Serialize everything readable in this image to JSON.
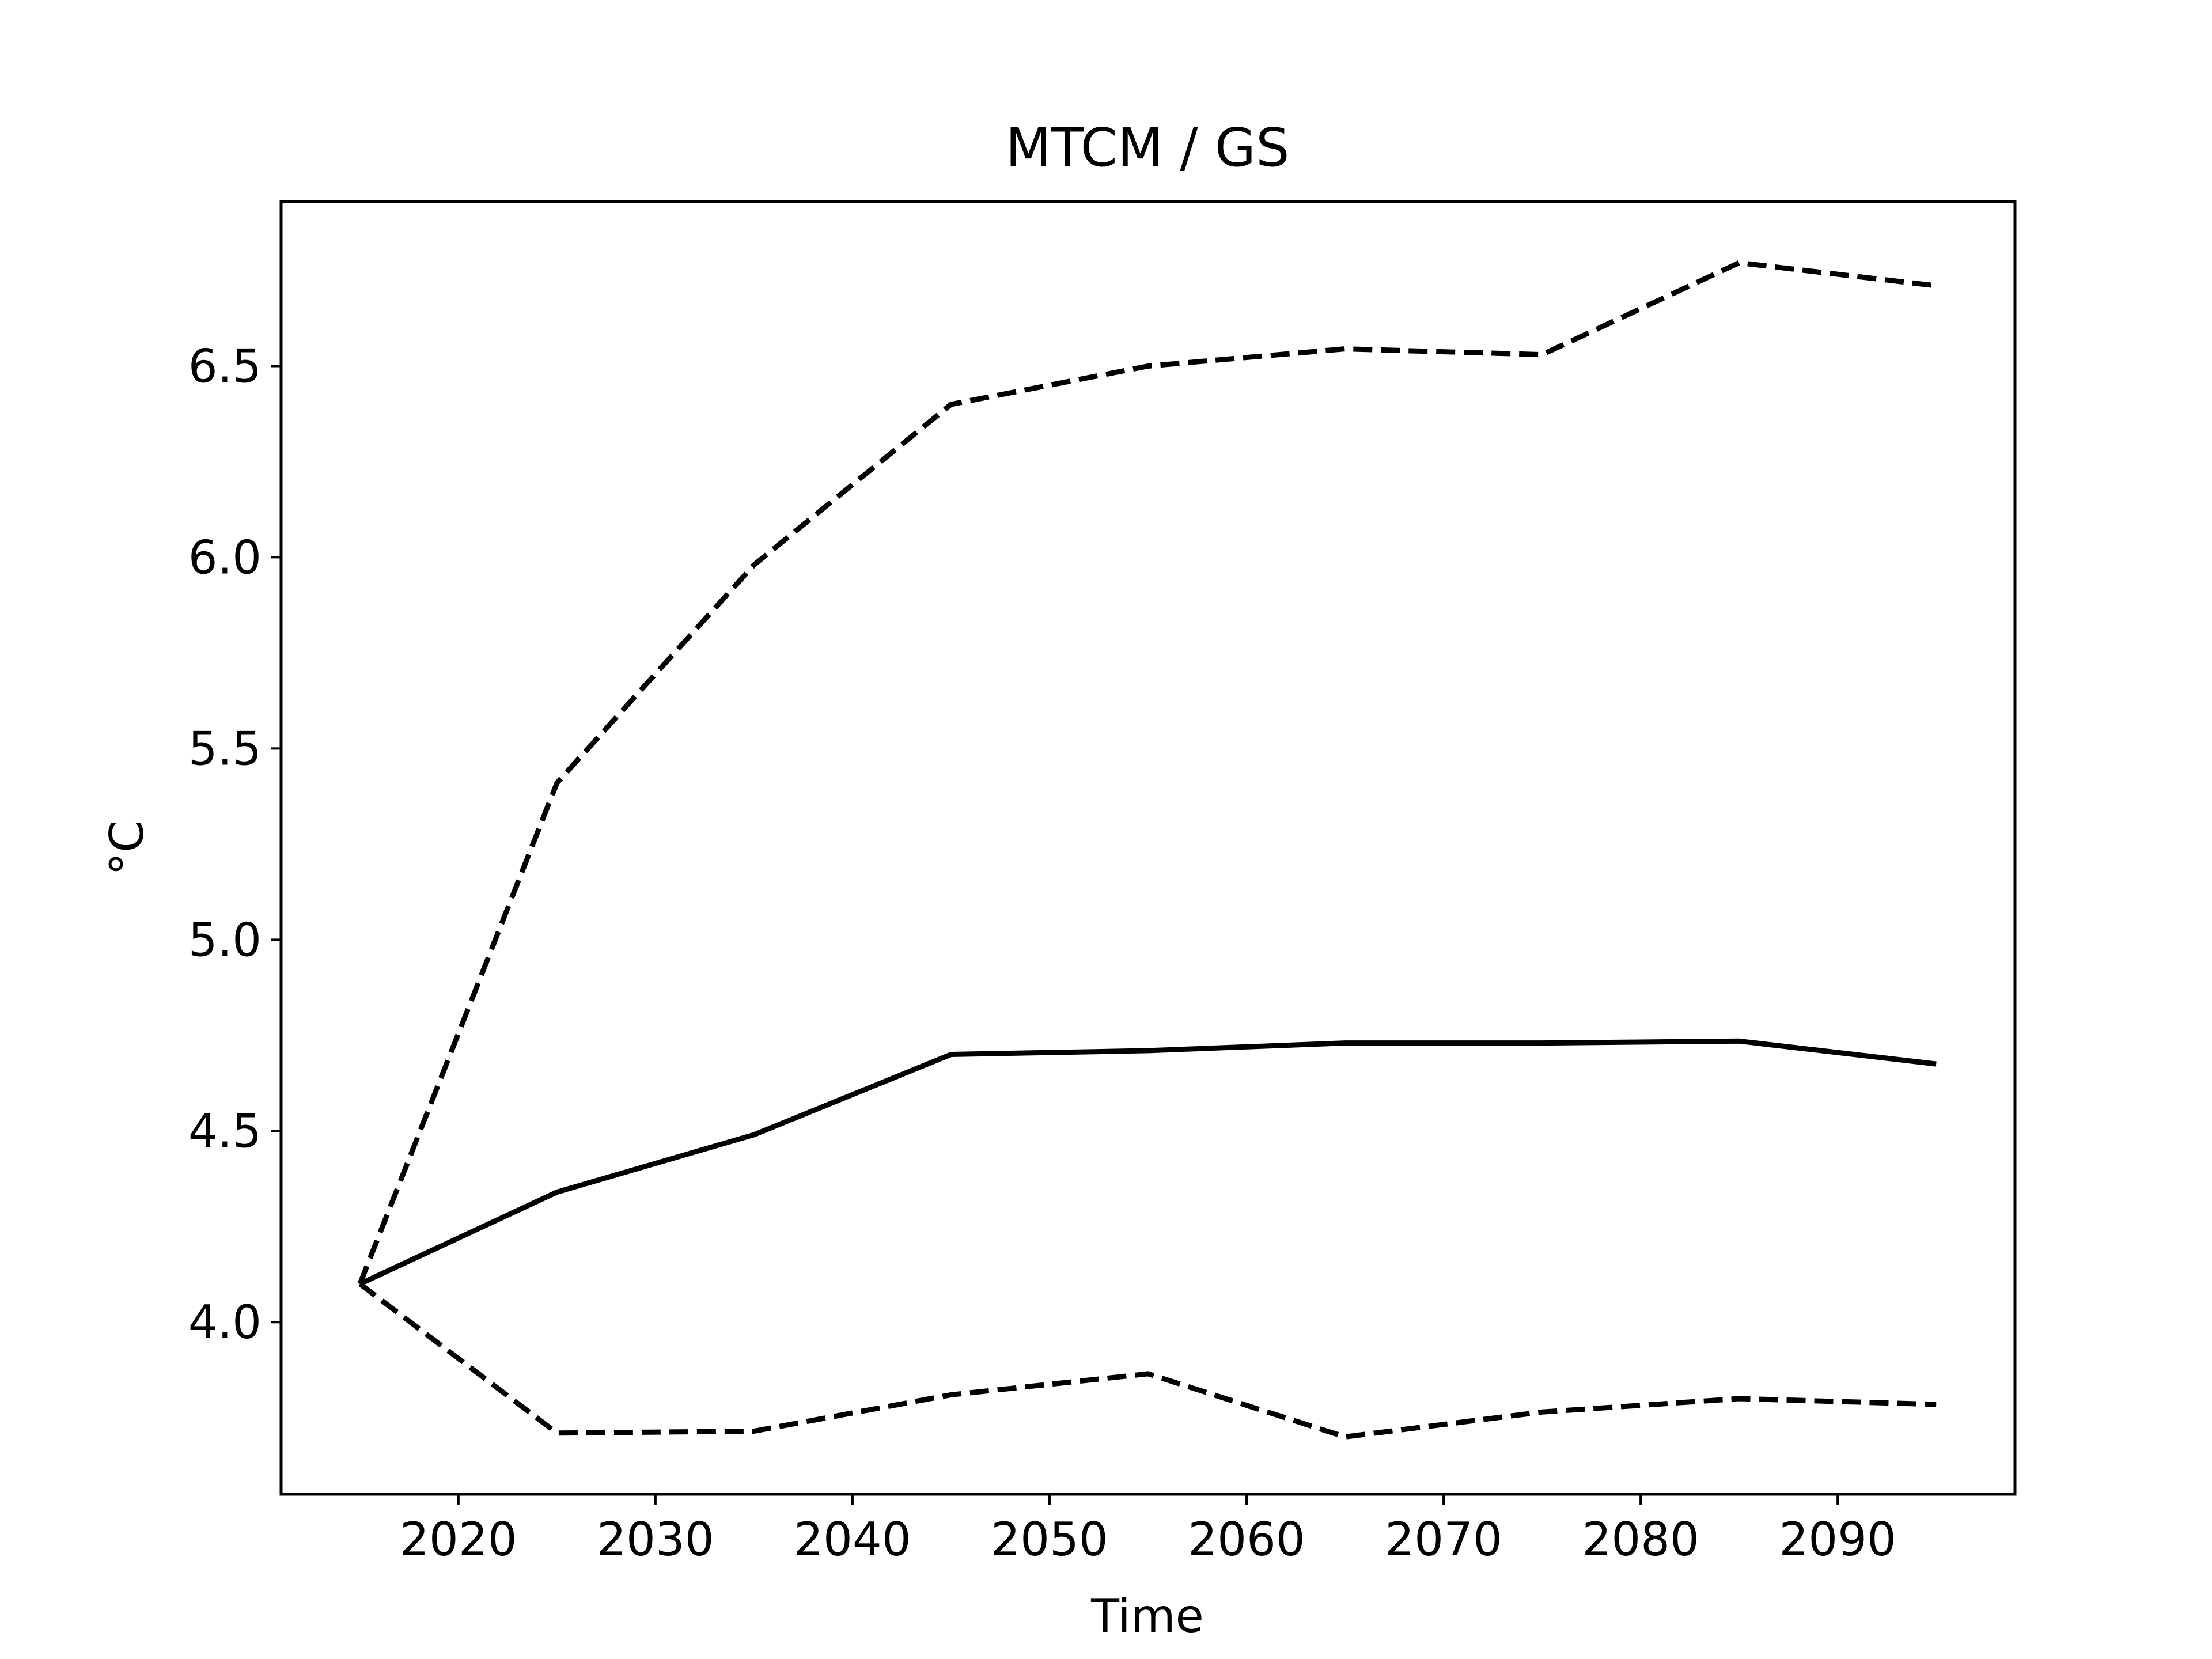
{
  "chart_data": {
    "type": "line",
    "title": "MTCM / GS",
    "xlabel": "Time",
    "ylabel": "°C",
    "xlim": [
      2011,
      2099
    ],
    "ylim": [
      3.55,
      6.93
    ],
    "x_ticks": [
      2020,
      2030,
      2040,
      2050,
      2060,
      2070,
      2080,
      2090
    ],
    "y_ticks": [
      4.0,
      4.5,
      5.0,
      5.5,
      6.0,
      6.5
    ],
    "grid": false,
    "legend": "none",
    "x": [
      2015,
      2025,
      2035,
      2045,
      2055,
      2065,
      2075,
      2085,
      2095
    ],
    "series": [
      {
        "style": "solid",
        "color": "#000000",
        "values": [
          4.1,
          4.34,
          4.49,
          4.7,
          4.71,
          4.73,
          4.73,
          4.735,
          4.675
        ]
      },
      {
        "style": "dashed",
        "color": "#000000",
        "values": [
          4.1,
          5.41,
          5.98,
          6.4,
          6.5,
          6.545,
          6.53,
          6.77,
          6.71
        ]
      },
      {
        "style": "dashed",
        "color": "#000000",
        "values": [
          4.1,
          3.71,
          3.715,
          3.81,
          3.865,
          3.7,
          3.765,
          3.8,
          3.785
        ]
      }
    ]
  }
}
